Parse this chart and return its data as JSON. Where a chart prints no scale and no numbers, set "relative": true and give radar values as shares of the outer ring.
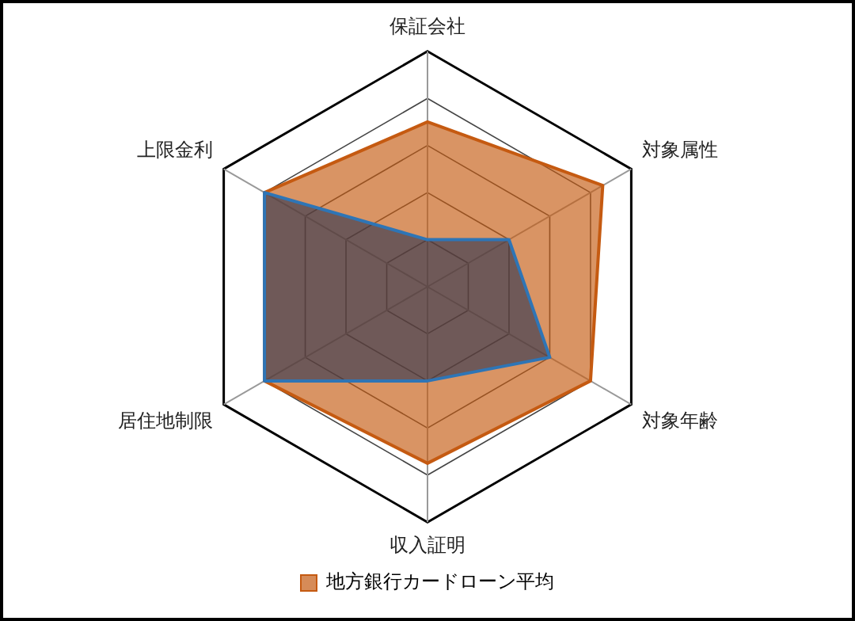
{
  "chart_data": {
    "type": "radar",
    "relative": true,
    "categories": [
      "保証会社",
      "対象属性",
      "対象年齢",
      "収入証明",
      "居住地制限",
      "上限金利"
    ],
    "series": [
      {
        "name": "地方銀行カードローン平均",
        "color": "#c55a11",
        "values": [
          0.7,
          0.86,
          0.8,
          0.75,
          0.8,
          0.8
        ]
      },
      {
        "color": "#2e75b6",
        "values": [
          0.2,
          0.4,
          0.6,
          0.4,
          0.8,
          0.8
        ]
      }
    ],
    "legend": "bottom",
    "grid": true,
    "marker": "none"
  }
}
